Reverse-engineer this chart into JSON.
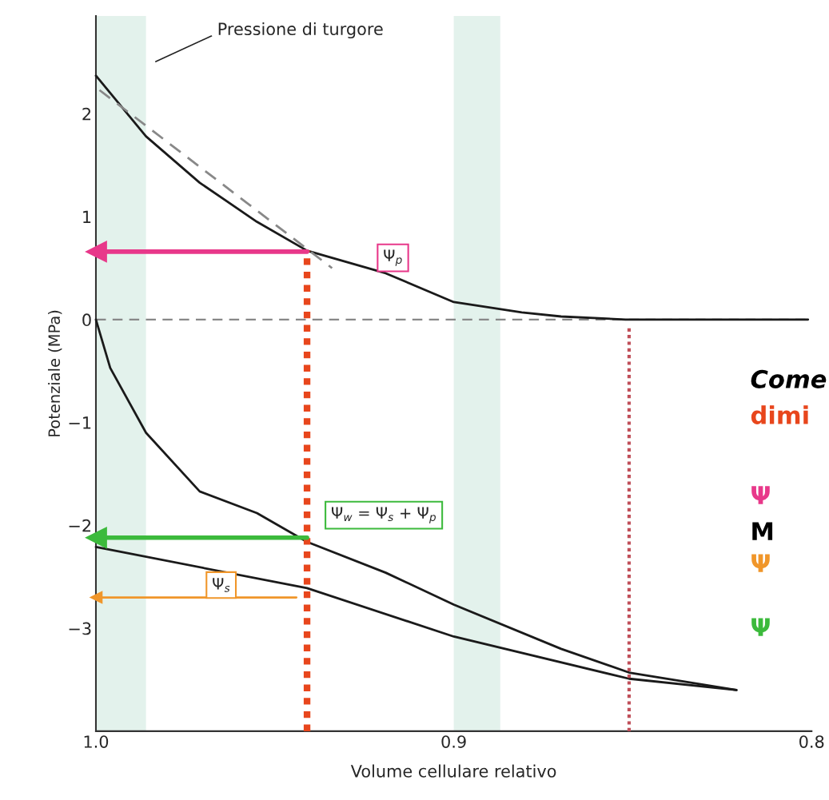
{
  "chart_data": {
    "type": "line",
    "xlabel": "Volume cellulare relativo",
    "ylabel": "Potenziale (MPa)",
    "xlim": [
      1.0,
      0.8
    ],
    "ylim": [
      -4.0,
      2.95
    ],
    "xticks": [
      {
        "value": 1.0,
        "label": "1.0"
      },
      0.9,
      0.8
    ],
    "yticks": [
      {
        "value": -3,
        "label": "−3"
      },
      {
        "value": -2,
        "label": "−2"
      },
      {
        "value": -1,
        "label": "−1"
      },
      0,
      1,
      2
    ],
    "grid": false,
    "series": [
      {
        "color": "#1a1a1a",
        "x": [
          1.0,
          0.986,
          0.971,
          0.955,
          0.941,
          0.919,
          0.9,
          0.881,
          0.87,
          0.852,
          0.801
        ],
        "values": [
          2.37,
          1.78,
          1.33,
          0.95,
          0.67,
          0.45,
          0.17,
          0.07,
          0.03,
          0,
          0
        ]
      },
      {
        "color": "#1a1a1a",
        "x": [
          1.0,
          0.996,
          0.986,
          0.971,
          0.955,
          0.941,
          0.919,
          0.9,
          0.87,
          0.851,
          0.821
        ],
        "values": [
          0,
          -0.47,
          -1.1,
          -1.67,
          -1.88,
          -2.16,
          -2.46,
          -2.77,
          -3.2,
          -3.43,
          -3.6
        ]
      },
      {
        "color": "#1a1a1a",
        "x": [
          1.0,
          0.941,
          0.9,
          0.851,
          0.821
        ],
        "values": [
          -2.21,
          -2.61,
          -3.08,
          -3.49,
          -3.6
        ]
      },
      {
        "color": "#888888",
        "line_style": "dashed",
        "x": [
          0.999,
          0.934
        ],
        "values": [
          2.23,
          0.5
        ]
      },
      {
        "color": "#e8461c",
        "line_style": "dotted",
        "x": [
          0.941,
          0.941
        ],
        "values": [
          -4.0,
          0.67
        ]
      },
      {
        "color": "#c0505a",
        "line_style": "dotted",
        "x": [
          0.851,
          0.851
        ],
        "values": [
          -4.0,
          -0.08
        ]
      },
      {
        "color": "#e8388a",
        "marker": "triangle",
        "x": [
          0.941,
          1.0
        ],
        "values": [
          0.66,
          0.66
        ]
      },
      {
        "color": "#3cba3c",
        "marker": "triangle",
        "x": [
          0.941,
          1.0
        ],
        "values": [
          -2.12,
          -2.12
        ]
      },
      {
        "color": "#f0962a",
        "marker": "triangle",
        "x": [
          0.944,
          1.0
        ],
        "values": [
          -2.7,
          -2.7
        ]
      }
    ],
    "ref_lines": [
      {
        "axis": "y",
        "value": 0,
        "color": "#888888",
        "line_style": "dashed"
      }
    ],
    "bands": [
      {
        "axis": "x",
        "from": 1.0,
        "to": 0.986,
        "color": "#e3f2ec"
      },
      {
        "axis": "x",
        "from": 0.9,
        "to": 0.887,
        "color": "#e3f2ec"
      }
    ],
    "annotations": [
      {
        "text": "Ψ$_{p}$",
        "x": 0.917,
        "y": 0.6
      },
      "Ψ$_{w}$ = Ψ$_{s}$ + Ψ$_{p}$",
      {
        "text": "Ψ$_{s}$",
        "x": 0.965,
        "y": -2.58
      },
      "Pressione di turgore",
      "Come",
      "dimi",
      "Ψ",
      "M",
      "Ψ",
      "Ψ"
    ]
  }
}
